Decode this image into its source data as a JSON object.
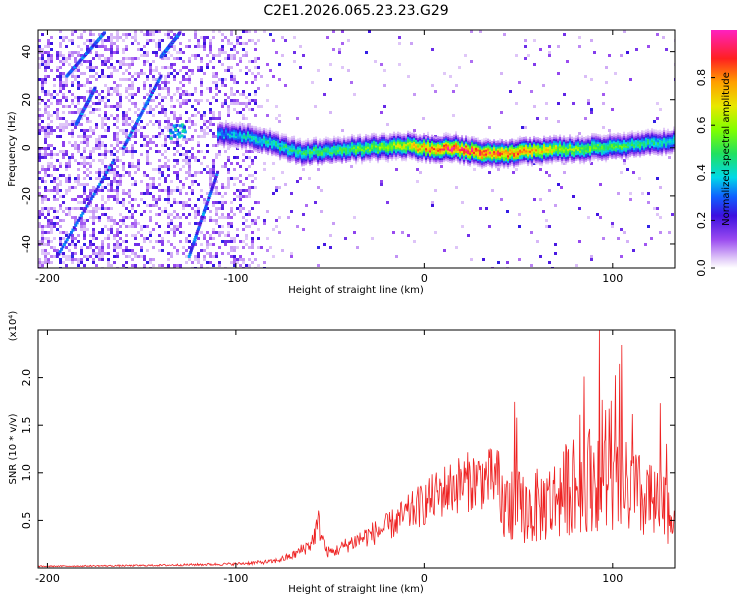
{
  "title": "C2E1.2026.065.23.23.G29",
  "chart_data": [
    {
      "type": "heatmap",
      "xlabel": "Height of straight line (km)",
      "ylabel": "Frequency (Hz)",
      "xlim": [
        -205,
        133
      ],
      "ylim": [
        -50,
        49
      ],
      "x_ticks": [
        -200,
        -100,
        0,
        100
      ],
      "y_ticks": [
        -40,
        -20,
        0,
        20,
        40
      ],
      "colorbar": {
        "label": "Normalized spectral amplitude",
        "range": [
          0,
          1
        ],
        "ticks": [
          "0.0",
          "0.2",
          "0.4",
          "0.6",
          "0.8"
        ],
        "tick_values": [
          0,
          0.2,
          0.4,
          0.6,
          0.8
        ]
      },
      "ridge": {
        "x": [
          -110,
          -95,
          -85,
          -75,
          -65,
          -50,
          -30,
          -10,
          0,
          15,
          30,
          45,
          60,
          75,
          90,
          105,
          120,
          133
        ],
        "freq": [
          6,
          5,
          3,
          0,
          -2,
          -1,
          0,
          1,
          0,
          0,
          -2,
          -2,
          -1,
          -0.5,
          0,
          1,
          2,
          3
        ],
        "amplitude": [
          0.35,
          0.4,
          0.42,
          0.45,
          0.48,
          0.5,
          0.55,
          0.65,
          0.82,
          0.9,
          0.88,
          0.85,
          0.75,
          0.6,
          0.55,
          0.5,
          0.45,
          0.4
        ]
      }
    },
    {
      "type": "line",
      "xlabel": "Height of straight line (km)",
      "ylabel": "SNR (10 * v/v)",
      "y_scale_label": "(x10⁴)",
      "xlim": [
        -205,
        133
      ],
      "ylim": [
        0,
        2.5
      ],
      "x_ticks": [
        -200,
        -100,
        0,
        100
      ],
      "y_ticks": [
        "0.5",
        "1.0",
        "1.5",
        "2.0"
      ],
      "y_tick_values": [
        0.5,
        1.0,
        1.5,
        2.0
      ],
      "series_color": "#ee2222",
      "envelope": {
        "x": [
          -205,
          -150,
          -100,
          -80,
          -70,
          -60,
          -56,
          -52,
          -48,
          -40,
          -30,
          -20,
          -10,
          0,
          10,
          20,
          30,
          40,
          50,
          55,
          60,
          70,
          80,
          90,
          100,
          110,
          120,
          133
        ],
        "y": [
          0.02,
          0.03,
          0.05,
          0.08,
          0.15,
          0.3,
          0.55,
          0.2,
          0.2,
          0.3,
          0.4,
          0.5,
          0.65,
          0.8,
          0.95,
          1.05,
          1.1,
          1.1,
          1.05,
          1.0,
          1.05,
          1.2,
          1.45,
          1.55,
          1.45,
          1.3,
          1.1,
          0.95
        ]
      }
    }
  ]
}
